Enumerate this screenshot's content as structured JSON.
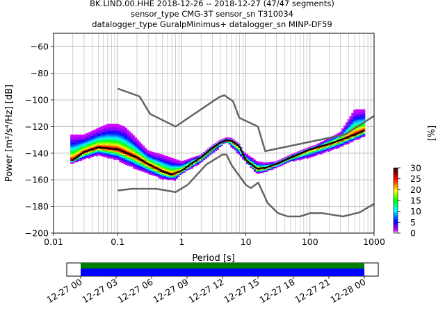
{
  "title_lines": [
    "BK.LIND.00.HHE   2018-12-26 -- 2018-12-27  (47/47 segments)",
    "sensor_type CMG-3T sensor_sn T310034",
    "datalogger_type GuralpMinimus+ datalogger_sn MINP-DF59"
  ],
  "chart_data": {
    "type": "heatmap",
    "xlabel": "Period [s]",
    "ylabel": "Power [m²/s⁴/Hz] [dB]",
    "x_scale": "log",
    "xlim": [
      0.01,
      1000
    ],
    "ylim": [
      -200,
      -50
    ],
    "x_ticks": [
      "0.01",
      "0.1",
      "1",
      "10",
      "100",
      "1000"
    ],
    "y_ticks": [
      "−60",
      "−80",
      "−100",
      "−120",
      "−140",
      "−160",
      "−180",
      "−200"
    ],
    "grid": true,
    "colorbar": {
      "label": "[%]",
      "ticks": [
        "0",
        "5",
        "10",
        "15",
        "20",
        "25",
        "30"
      ],
      "range": [
        0,
        30
      ]
    },
    "noise_models": [
      {
        "name": "NHNM",
        "x": [
          0.1,
          0.22,
          0.32,
          0.8,
          3.8,
          4.6,
          6.3,
          7.9,
          15.4,
          20,
          354.8,
          1000
        ],
        "y": [
          -91.5,
          -97.4,
          -110.5,
          -120,
          -98,
          -96.5,
          -101,
          -113.5,
          -120,
          -138.5,
          -126,
          -112
        ]
      },
      {
        "name": "NLNM",
        "x": [
          0.1,
          0.17,
          0.4,
          0.8,
          1.24,
          2.4,
          4.3,
          5,
          6,
          10,
          12,
          15.6,
          21.9,
          31.6,
          45,
          70,
          101,
          154,
          328,
          600,
          1000
        ],
        "y": [
          -168,
          -166.7,
          -166.7,
          -169.2,
          -163.7,
          -148.6,
          -141.1,
          -141.1,
          -149,
          -163.8,
          -166.2,
          -162.1,
          -177.5,
          -185,
          -187.5,
          -187.5,
          -185,
          -185,
          -187.5,
          -184.4,
          -178
        ]
      },
      {
        "name": "mean",
        "x": [
          0.02,
          0.03,
          0.05,
          0.1,
          0.2,
          0.3,
          0.5,
          0.7,
          1,
          1.5,
          2,
          3,
          4,
          5,
          6,
          8,
          10,
          15,
          20,
          30,
          50,
          80,
          100,
          200,
          300,
          500,
          700
        ],
        "y": [
          -145,
          -139,
          -135.5,
          -137,
          -143,
          -148,
          -153.5,
          -156,
          -153,
          -147,
          -143,
          -136,
          -132,
          -130,
          -130.5,
          -135,
          -145,
          -151.5,
          -151,
          -148,
          -143,
          -139,
          -137,
          -133,
          -130,
          -126,
          -123
        ]
      }
    ],
    "upper_envelope": {
      "x": [
        0.03,
        0.05,
        0.07,
        0.1,
        0.13,
        0.2,
        0.3,
        0.5,
        1,
        2,
        5,
        10,
        15,
        20,
        30,
        100,
        300,
        500,
        700
      ],
      "y": [
        -126,
        -121,
        -118,
        -118,
        -120,
        -129,
        -138,
        -141,
        -146,
        -141,
        -130,
        -140,
        -146,
        -147,
        -146,
        -136,
        -124,
        -107,
        -107
      ]
    },
    "lower_envelope": {
      "x": [
        0.02,
        0.05,
        0.1,
        0.2,
        0.5,
        0.8,
        1,
        2,
        5,
        10,
        15,
        20,
        50,
        100,
        300,
        700
      ],
      "y": [
        -147,
        -141,
        -145,
        -152,
        -159,
        -160,
        -155,
        -147,
        -131,
        -146,
        -155,
        -154,
        -146,
        -143,
        -135,
        -127
      ]
    },
    "time_axis": {
      "ticks": [
        "12-27 00",
        "12-27 03",
        "12-27 06",
        "12-27 09",
        "12-27 12",
        "12-27 15",
        "12-27 18",
        "12-27 21",
        "12-28 00"
      ],
      "coverage_colors": [
        "#008000",
        "#0000ff"
      ]
    }
  },
  "colors": {
    "noise_model": "#646464",
    "mean": "#000000",
    "grid": "#b0b0b0"
  }
}
